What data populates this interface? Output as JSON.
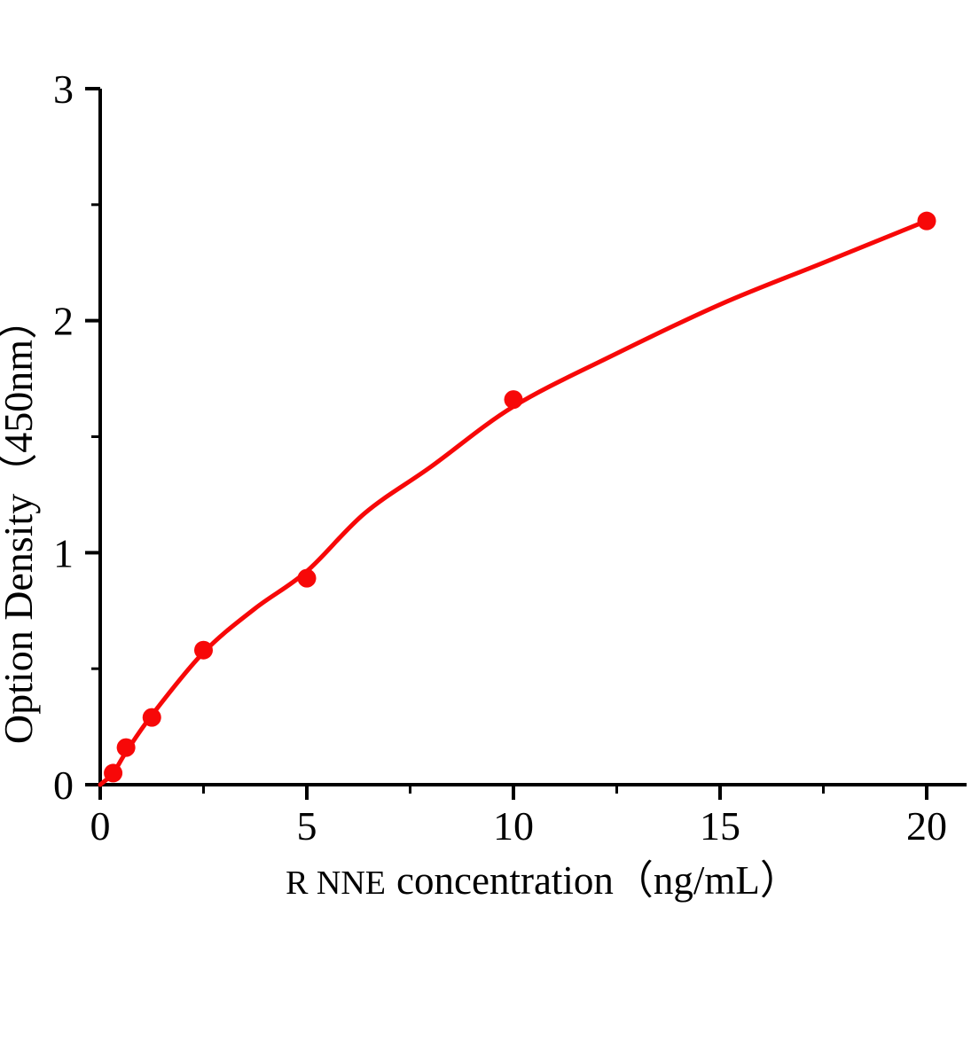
{
  "figure": {
    "background": "#ffffff",
    "axis_color": "#000000",
    "text_color": "#000000"
  },
  "chart_data": {
    "type": "scatter",
    "title": "",
    "xlabel": "R NNE concentration（ng/mL）",
    "xlabel_prefix": "R NNE",
    "xlabel_rest": "concentration（ng/mL）",
    "ylabel": "Option Density（450nm）",
    "x": [
      0.313,
      0.625,
      1.25,
      2.5,
      5,
      10,
      20
    ],
    "y": [
      0.05,
      0.16,
      0.29,
      0.58,
      0.89,
      1.66,
      2.43
    ],
    "fit_curve": {
      "x": [
        0,
        0.313,
        0.625,
        1.25,
        2.5,
        3.75,
        5,
        6.4,
        8,
        10,
        12.4,
        15,
        17.5,
        20
      ],
      "y": [
        0.0,
        0.05,
        0.14,
        0.3,
        0.57,
        0.76,
        0.92,
        1.17,
        1.37,
        1.63,
        1.85,
        2.07,
        2.25,
        2.43
      ]
    },
    "xlim": [
      0,
      20
    ],
    "ylim": [
      0,
      3
    ],
    "x_major_ticks": [
      0,
      5,
      10,
      15,
      20
    ],
    "x_minor_ticks": [
      2.5,
      7.5,
      12.5,
      17.5
    ],
    "y_major_ticks": [
      0,
      1,
      2,
      3
    ],
    "y_minor_ticks": [
      0.5,
      1.5,
      2.5
    ],
    "grid": false,
    "legend": null,
    "point_color": "#f70808",
    "line_color": "#f70808",
    "axis_color": "#000000"
  }
}
